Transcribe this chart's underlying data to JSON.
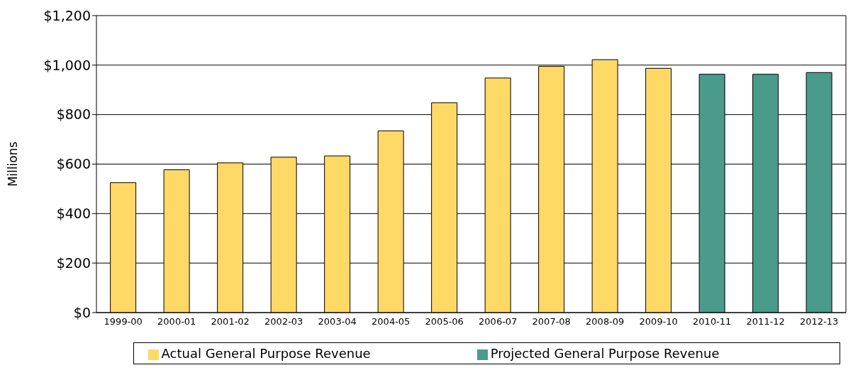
{
  "chart_data": {
    "type": "bar",
    "ylabel": "Millions",
    "categories": [
      "1999-00",
      "2000-01",
      "2001-02",
      "2002-03",
      "2003-04",
      "2004-05",
      "2005-06",
      "2006-07",
      "2007-08",
      "2008-09",
      "2009-10",
      "2010-11",
      "2011-12",
      "2012-13"
    ],
    "series": [
      {
        "name": "Actual General Purpose Revenue",
        "color": "#ffd966",
        "values": [
          525,
          577,
          605,
          628,
          633,
          734,
          848,
          948,
          995,
          1022,
          987,
          null,
          null,
          null
        ]
      },
      {
        "name": "Projected General Purpose Revenue",
        "color": "#4a9b8a",
        "values": [
          null,
          null,
          null,
          null,
          null,
          null,
          null,
          null,
          null,
          null,
          null,
          963,
          963,
          970
        ]
      }
    ],
    "ylim": [
      0,
      1200
    ],
    "yticks": [
      {
        "value": 0,
        "label": "$0"
      },
      {
        "value": 200,
        "label": "$200"
      },
      {
        "value": 400,
        "label": "$400"
      },
      {
        "value": 600,
        "label": "$600"
      },
      {
        "value": 800,
        "label": "$800"
      },
      {
        "value": 1000,
        "label": "$1,000"
      },
      {
        "value": 1200,
        "label": "$1,200"
      }
    ],
    "grid": "y",
    "legend": "bottom"
  }
}
